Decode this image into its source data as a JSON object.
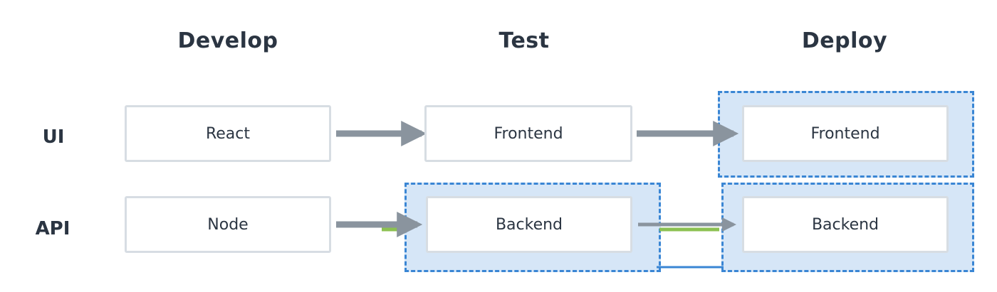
{
  "columns": {
    "develop": "Develop",
    "test": "Test",
    "deploy": "Deploy"
  },
  "rows": {
    "ui": "UI",
    "api": "API"
  },
  "boxes": {
    "react": "React",
    "test_frontend": "Frontend",
    "deploy_frontend": "Frontend",
    "node": "Node",
    "test_backend": "Backend",
    "deploy_backend": "Backend"
  },
  "colors": {
    "arrow": "#8a949e",
    "highlight_line": "#8cc152",
    "connector": "#3a86d4",
    "group_fill": "#d6e6f7",
    "group_border": "#3a86d4",
    "text": "#2b3542"
  }
}
